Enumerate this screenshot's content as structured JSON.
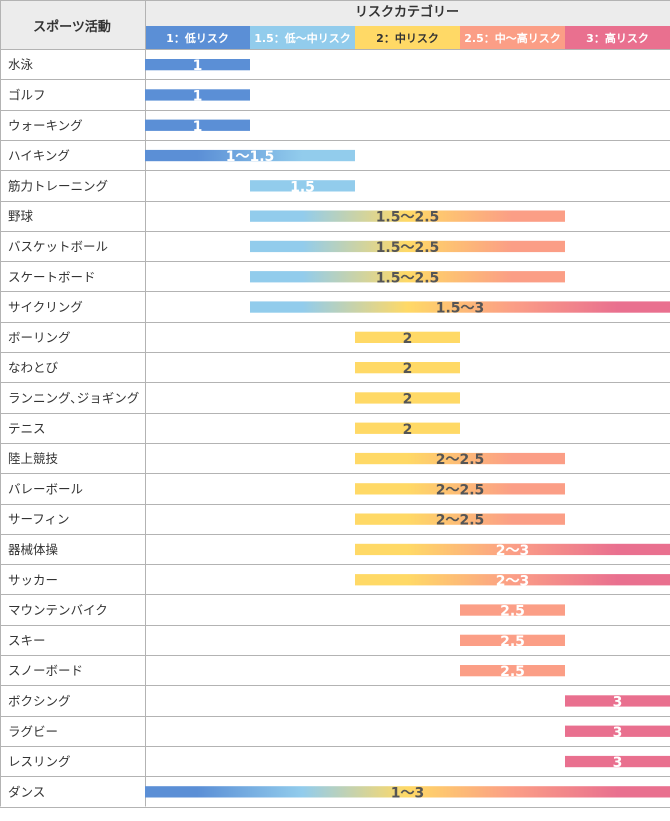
{
  "header": {
    "activity_col": "スポーツ活動",
    "category_title": "リスクカテゴリー"
  },
  "categories": [
    {
      "label": "1：低リスク",
      "color": "#5b8fd6",
      "text_color": "#ffffff"
    },
    {
      "label": "1.5：低～中リスク",
      "color": "#92ccec",
      "text_color": "#ffffff"
    },
    {
      "label": "2：中リスク",
      "color": "#ffd966",
      "text_color": "#333333"
    },
    {
      "label": "2.5：中～高リスク",
      "color": "#fb9e86",
      "text_color": "#ffffff"
    },
    {
      "label": "3：高リスク",
      "color": "#e9708f",
      "text_color": "#ffffff"
    }
  ],
  "colors": {
    "header_bg": "#ececec",
    "grid": "#b3b3b3",
    "label_on_bar_dark": "#555555",
    "label_on_bar_light": "#ffffff"
  },
  "chart_data": {
    "type": "bar",
    "orientation": "horizontal-range",
    "x_scale": [
      1,
      1.5,
      2,
      2.5,
      3
    ],
    "rows": [
      {
        "activity": "水泳",
        "min": 1,
        "max": 1,
        "label": "1"
      },
      {
        "activity": "ゴルフ",
        "min": 1,
        "max": 1,
        "label": "1"
      },
      {
        "activity": "ウォーキング",
        "min": 1,
        "max": 1,
        "label": "1"
      },
      {
        "activity": "ハイキング",
        "min": 1,
        "max": 1.5,
        "label": "1～1.5"
      },
      {
        "activity": "筋力トレーニング",
        "min": 1.5,
        "max": 1.5,
        "label": "1.5"
      },
      {
        "activity": "野球",
        "min": 1.5,
        "max": 2.5,
        "label": "1.5～2.5"
      },
      {
        "activity": "バスケットボール",
        "min": 1.5,
        "max": 2.5,
        "label": "1.5～2.5"
      },
      {
        "activity": "スケートボード",
        "min": 1.5,
        "max": 2.5,
        "label": "1.5～2.5"
      },
      {
        "activity": "サイクリング",
        "min": 1.5,
        "max": 3,
        "label": "1.5～3"
      },
      {
        "activity": "ボーリング",
        "min": 2,
        "max": 2,
        "label": "2"
      },
      {
        "activity": "なわとび",
        "min": 2,
        "max": 2,
        "label": "2"
      },
      {
        "activity": "ランニング､ジョギング",
        "min": 2,
        "max": 2,
        "label": "2"
      },
      {
        "activity": "テニス",
        "min": 2,
        "max": 2,
        "label": "2"
      },
      {
        "activity": "陸上競技",
        "min": 2,
        "max": 2.5,
        "label": "2～2.5"
      },
      {
        "activity": "バレーボール",
        "min": 2,
        "max": 2.5,
        "label": "2～2.5"
      },
      {
        "activity": "サーフィン",
        "min": 2,
        "max": 2.5,
        "label": "2～2.5"
      },
      {
        "activity": "器械体操",
        "min": 2,
        "max": 3,
        "label": "2～3"
      },
      {
        "activity": "サッカー",
        "min": 2,
        "max": 3,
        "label": "2～3"
      },
      {
        "activity": "マウンテンバイク",
        "min": 2.5,
        "max": 2.5,
        "label": "2.5"
      },
      {
        "activity": "スキー",
        "min": 2.5,
        "max": 2.5,
        "label": "2.5"
      },
      {
        "activity": "スノーボード",
        "min": 2.5,
        "max": 2.5,
        "label": "2.5"
      },
      {
        "activity": "ボクシング",
        "min": 3,
        "max": 3,
        "label": "3"
      },
      {
        "activity": "ラグビー",
        "min": 3,
        "max": 3,
        "label": "3"
      },
      {
        "activity": "レスリング",
        "min": 3,
        "max": 3,
        "label": "3"
      },
      {
        "activity": "ダンス",
        "min": 1,
        "max": 3,
        "label": "1～3"
      }
    ]
  }
}
